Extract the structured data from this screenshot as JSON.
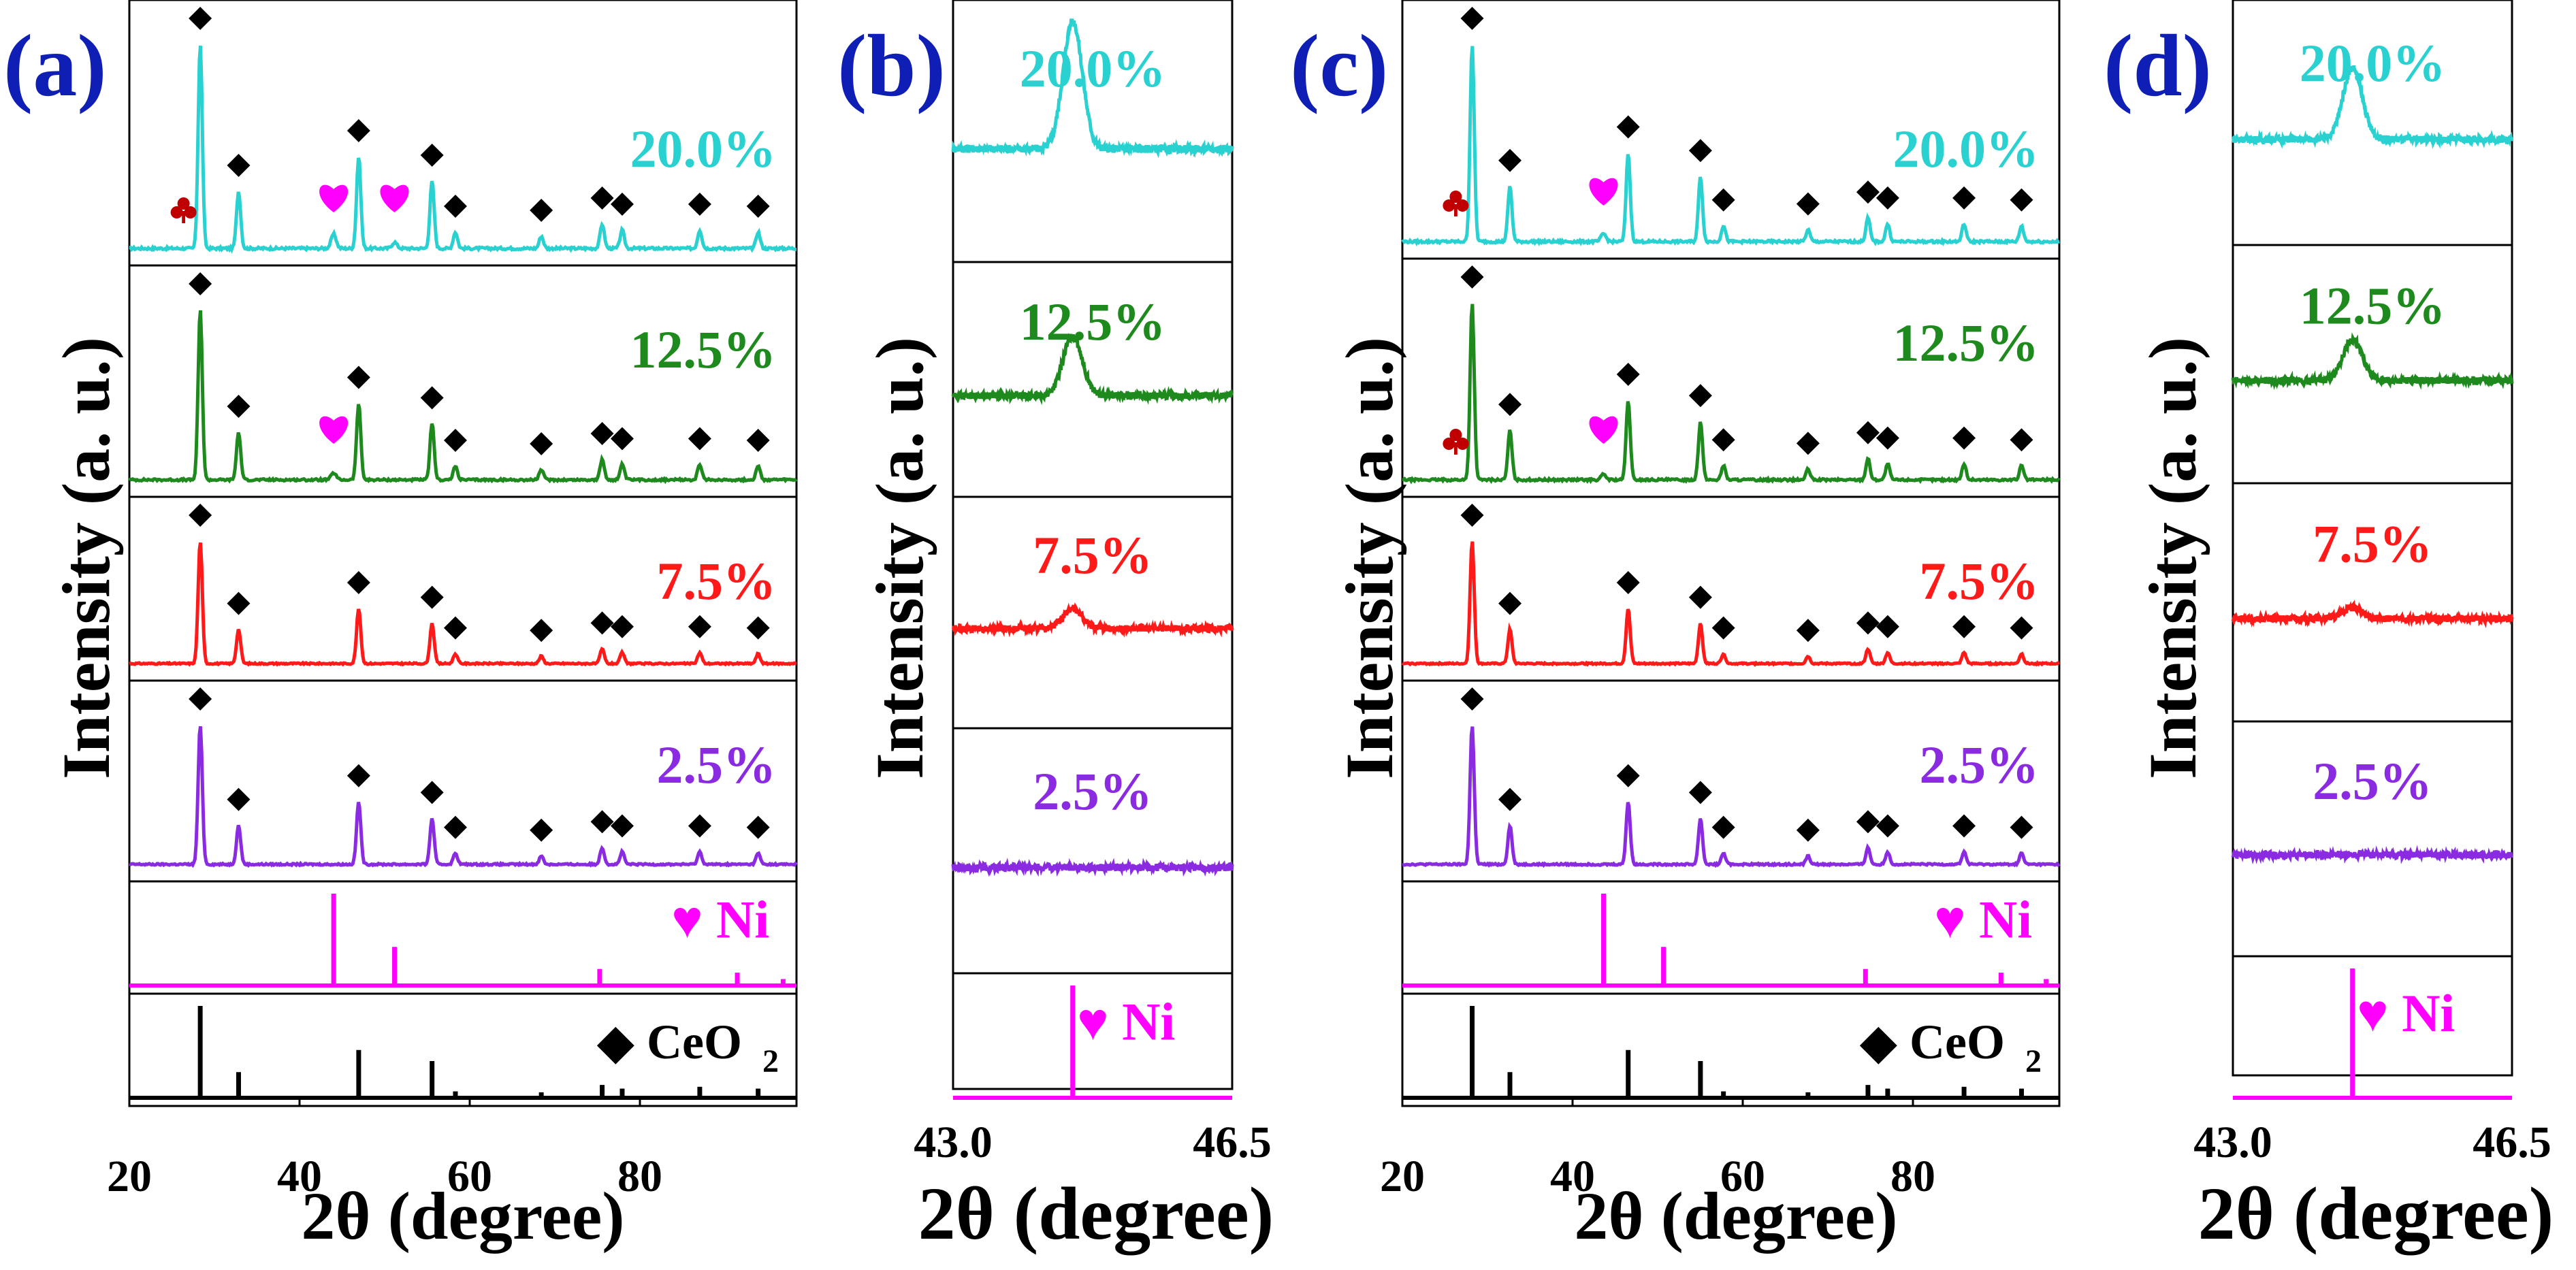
{
  "chart_data": [
    {
      "panel": "(a)",
      "type": "line",
      "title": "",
      "xlabel": "2θ (degree)",
      "ylabel": "Intensity (a. u.)",
      "xlim": [
        20,
        100
      ],
      "xticks": [
        "20",
        "40",
        "60",
        "80"
      ],
      "series": [
        {
          "name": "20.0%",
          "color": "#2ad1d1",
          "peaks": [
            [
              28.5,
              1.0
            ],
            [
              33.1,
              0.28
            ],
            [
              47.5,
              0.45
            ],
            [
              56.3,
              0.33
            ],
            [
              59.1,
              0.08
            ],
            [
              69.4,
              0.06
            ],
            [
              76.7,
              0.12
            ],
            [
              79.1,
              0.09
            ],
            [
              88.4,
              0.09
            ],
            [
              95.4,
              0.08
            ]
          ],
          "minor_peaks": [
            [
              44.5,
              0.07
            ],
            [
              51.8,
              0.03
            ]
          ],
          "markers": [
            "club",
            "heart",
            "heart"
          ]
        },
        {
          "name": "12.5%",
          "color": "#1e8a1e",
          "peaks": [
            [
              28.5,
              1.0
            ],
            [
              33.1,
              0.28
            ],
            [
              47.5,
              0.45
            ],
            [
              56.3,
              0.33
            ],
            [
              59.1,
              0.08
            ],
            [
              69.4,
              0.06
            ],
            [
              76.7,
              0.12
            ],
            [
              79.1,
              0.09
            ],
            [
              88.4,
              0.09
            ],
            [
              95.4,
              0.08
            ]
          ],
          "minor_peaks": [
            [
              44.5,
              0.04
            ]
          ],
          "markers": [
            "heart"
          ]
        },
        {
          "name": "7.5%",
          "color": "#ff1a1a",
          "peaks": [
            [
              28.5,
              1.0
            ],
            [
              33.1,
              0.28
            ],
            [
              47.5,
              0.45
            ],
            [
              56.3,
              0.33
            ],
            [
              59.1,
              0.08
            ],
            [
              69.4,
              0.06
            ],
            [
              76.7,
              0.12
            ],
            [
              79.1,
              0.09
            ],
            [
              88.4,
              0.09
            ],
            [
              95.4,
              0.08
            ]
          ]
        },
        {
          "name": "2.5%",
          "color": "#8a2be2",
          "peaks": [
            [
              28.5,
              1.0
            ],
            [
              33.1,
              0.28
            ],
            [
              47.5,
              0.45
            ],
            [
              56.3,
              0.33
            ],
            [
              59.1,
              0.08
            ],
            [
              69.4,
              0.06
            ],
            [
              76.7,
              0.12
            ],
            [
              79.1,
              0.09
            ],
            [
              88.4,
              0.09
            ],
            [
              95.4,
              0.08
            ]
          ]
        }
      ],
      "reference": [
        {
          "name": "Ni",
          "color": "#ff00ff",
          "sticks": [
            [
              44.5,
              1.0
            ],
            [
              51.8,
              0.42
            ],
            [
              76.4,
              0.18
            ],
            [
              92.9,
              0.14
            ],
            [
              98.4,
              0.07
            ]
          ]
        },
        {
          "name": "CeO2",
          "color": "#000000",
          "sticks": [
            [
              28.5,
              1.0
            ],
            [
              33.1,
              0.28
            ],
            [
              47.5,
              0.52
            ],
            [
              56.3,
              0.4
            ],
            [
              59.1,
              0.07
            ],
            [
              69.4,
              0.06
            ],
            [
              76.7,
              0.14
            ],
            [
              79.1,
              0.1
            ],
            [
              88.4,
              0.12
            ],
            [
              95.4,
              0.1
            ]
          ]
        }
      ]
    },
    {
      "panel": "(b)",
      "type": "line",
      "xlabel": "2θ (degree)",
      "ylabel": "Intensity (a. u.)",
      "xlim": [
        43.0,
        46.5
      ],
      "xticks": [
        "43.0",
        "46.5"
      ],
      "series": [
        {
          "name": "20.0%",
          "color": "#2ad1d1",
          "peak_x": 44.5,
          "height": 0.8
        },
        {
          "name": "12.5%",
          "color": "#1e8a1e",
          "peak_x": 44.5,
          "height": 0.45
        },
        {
          "name": "7.5%",
          "color": "#ff1a1a",
          "peak_x": 44.5,
          "height": 0.15
        },
        {
          "name": "2.5%",
          "color": "#8a2be2",
          "peak_x": 44.5,
          "height": 0.0
        }
      ],
      "reference": [
        {
          "name": "Ni",
          "color": "#ff00ff",
          "sticks": [
            [
              44.5,
              1.0
            ]
          ]
        }
      ]
    },
    {
      "panel": "(c)",
      "type": "line",
      "xlabel": "2θ (degree)",
      "ylabel": "Intensity (a. u.)",
      "xlim": [
        20,
        100
      ],
      "xticks": [
        "20",
        "40",
        "60",
        "80"
      ],
      "series": [
        {
          "name": "20.0%",
          "color": "#2ad1d1",
          "peaks": [
            [
              28.5,
              1.0
            ],
            [
              33.1,
              0.28
            ],
            [
              47.5,
              0.45
            ],
            [
              56.3,
              0.33
            ],
            [
              59.1,
              0.08
            ],
            [
              69.4,
              0.06
            ],
            [
              76.7,
              0.12
            ],
            [
              79.1,
              0.09
            ],
            [
              88.4,
              0.09
            ],
            [
              95.4,
              0.08
            ]
          ],
          "minor_peaks": [
            [
              44.5,
              0.04
            ]
          ],
          "markers": [
            "club",
            "heart"
          ]
        },
        {
          "name": "12.5%",
          "color": "#1e8a1e",
          "peaks": [
            [
              28.5,
              1.0
            ],
            [
              33.1,
              0.28
            ],
            [
              47.5,
              0.45
            ],
            [
              56.3,
              0.33
            ],
            [
              59.1,
              0.08
            ],
            [
              69.4,
              0.06
            ],
            [
              76.7,
              0.12
            ],
            [
              79.1,
              0.09
            ],
            [
              88.4,
              0.09
            ],
            [
              95.4,
              0.08
            ]
          ],
          "minor_peaks": [
            [
              44.5,
              0.03
            ]
          ],
          "markers": [
            "club",
            "heart"
          ]
        },
        {
          "name": "7.5%",
          "color": "#ff1a1a",
          "peaks": [
            [
              28.5,
              1.0
            ],
            [
              33.1,
              0.28
            ],
            [
              47.5,
              0.45
            ],
            [
              56.3,
              0.33
            ],
            [
              59.1,
              0.08
            ],
            [
              69.4,
              0.06
            ],
            [
              76.7,
              0.12
            ],
            [
              79.1,
              0.09
            ],
            [
              88.4,
              0.09
            ],
            [
              95.4,
              0.08
            ]
          ]
        },
        {
          "name": "2.5%",
          "color": "#8a2be2",
          "peaks": [
            [
              28.5,
              1.0
            ],
            [
              33.1,
              0.28
            ],
            [
              47.5,
              0.45
            ],
            [
              56.3,
              0.33
            ],
            [
              59.1,
              0.08
            ],
            [
              69.4,
              0.06
            ],
            [
              76.7,
              0.12
            ],
            [
              79.1,
              0.09
            ],
            [
              88.4,
              0.09
            ],
            [
              95.4,
              0.08
            ]
          ]
        }
      ],
      "reference": [
        {
          "name": "Ni",
          "color": "#ff00ff",
          "sticks": [
            [
              44.5,
              1.0
            ],
            [
              51.8,
              0.42
            ],
            [
              76.4,
              0.18
            ],
            [
              92.9,
              0.14
            ],
            [
              98.4,
              0.07
            ]
          ]
        },
        {
          "name": "CeO2",
          "color": "#000000",
          "sticks": [
            [
              28.5,
              1.0
            ],
            [
              33.1,
              0.28
            ],
            [
              47.5,
              0.52
            ],
            [
              56.3,
              0.4
            ],
            [
              59.1,
              0.07
            ],
            [
              69.4,
              0.06
            ],
            [
              76.7,
              0.14
            ],
            [
              79.1,
              0.1
            ],
            [
              88.4,
              0.12
            ],
            [
              95.4,
              0.1
            ]
          ]
        }
      ]
    },
    {
      "panel": "(d)",
      "type": "line",
      "xlabel": "2θ (degree)",
      "ylabel": "Intensity (a. u.)",
      "xlim": [
        43.0,
        46.5
      ],
      "xticks": [
        "43.0",
        "46.5"
      ],
      "series": [
        {
          "name": "20.0%",
          "color": "#2ad1d1",
          "peak_x": 44.5,
          "height": 0.5
        },
        {
          "name": "12.5%",
          "color": "#1e8a1e",
          "peak_x": 44.5,
          "height": 0.3
        },
        {
          "name": "7.5%",
          "color": "#ff1a1a",
          "peak_x": 44.5,
          "height": 0.08
        },
        {
          "name": "2.5%",
          "color": "#8a2be2",
          "peak_x": 44.5,
          "height": 0.0
        }
      ],
      "reference": [
        {
          "name": "Ni",
          "color": "#ff00ff",
          "sticks": [
            [
              44.5,
              1.0
            ]
          ]
        }
      ]
    }
  ],
  "labels": {
    "panel_a": "(a)",
    "panel_b": "(b)",
    "panel_c": "(c)",
    "panel_d": "(d)",
    "ylabel": "Intensity (a. u.)",
    "xlabel": "2θ (degree)",
    "ni_legend": "♥ Ni",
    "ceo2_legend_main": "◆ CeO",
    "ceo2_legend_sub": "2"
  },
  "colors": {
    "cyan": "#2ad1d1",
    "green": "#1e8a1e",
    "red": "#ff1a1a",
    "purple": "#8a2be2",
    "magenta": "#ff00ff",
    "navy": "#0f1eb4",
    "darkred": "#c00000"
  }
}
